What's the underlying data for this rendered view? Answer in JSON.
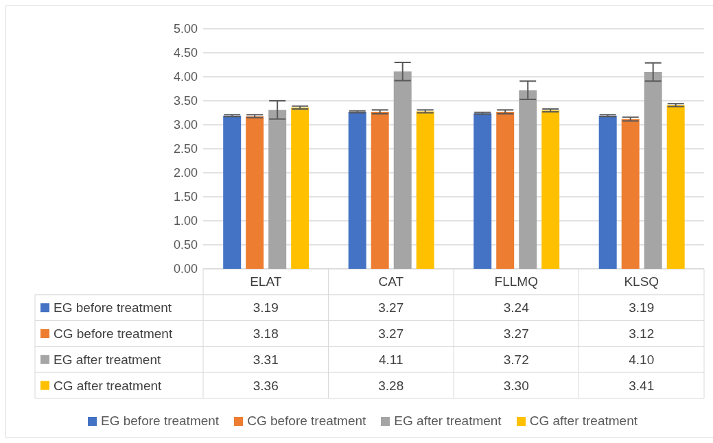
{
  "chart_data": {
    "type": "bar",
    "categories": [
      "ELAT",
      "CAT",
      "FLLMQ",
      "KLSQ"
    ],
    "series": [
      {
        "name": "EG before treatment",
        "color": "#4472c4",
        "values": [
          3.19,
          3.27,
          3.24,
          3.19
        ],
        "errors": [
          0.02,
          0.02,
          0.02,
          0.02
        ],
        "value_labels": [
          "3.19",
          "3.27",
          "3.24",
          "3.19"
        ]
      },
      {
        "name": "CG before treatment",
        "color": "#ed7d31",
        "values": [
          3.18,
          3.27,
          3.27,
          3.12
        ],
        "errors": [
          0.03,
          0.04,
          0.04,
          0.04
        ],
        "value_labels": [
          "3.18",
          "3.27",
          "3.27",
          "3.12"
        ]
      },
      {
        "name": "EG after treatment",
        "color": "#a5a5a5",
        "values": [
          3.31,
          4.11,
          3.72,
          4.1
        ],
        "errors": [
          0.19,
          0.19,
          0.19,
          0.19
        ],
        "value_labels": [
          "3.31",
          "4.11",
          "3.72",
          "4.10"
        ]
      },
      {
        "name": "CG after treatment",
        "color": "#ffc000",
        "values": [
          3.36,
          3.28,
          3.3,
          3.41
        ],
        "errors": [
          0.03,
          0.03,
          0.03,
          0.03
        ],
        "value_labels": [
          "3.36",
          "3.28",
          "3.30",
          "3.41"
        ]
      }
    ],
    "ylim": [
      0,
      5
    ],
    "yticks": [
      {
        "value": 0,
        "label": "0.00"
      },
      {
        "value": 0.5,
        "label": "0.50"
      },
      {
        "value": 1,
        "label": "1.00"
      },
      {
        "value": 1.5,
        "label": "1.50"
      },
      {
        "value": 2,
        "label": "2.00"
      },
      {
        "value": 2.5,
        "label": "2.50"
      },
      {
        "value": 3,
        "label": "3.00"
      },
      {
        "value": 3.5,
        "label": "3.50"
      },
      {
        "value": 4,
        "label": "4.00"
      },
      {
        "value": 4.5,
        "label": "4.50"
      },
      {
        "value": 5,
        "label": "5.00"
      }
    ],
    "grid": "y",
    "legend": "bottom"
  }
}
